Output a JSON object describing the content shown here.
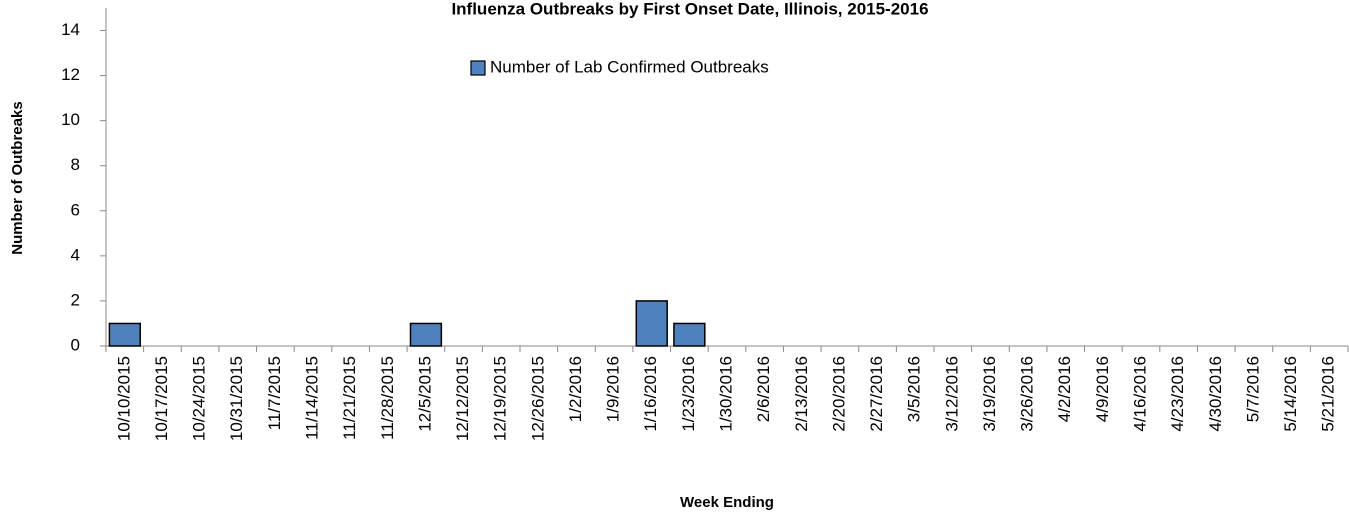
{
  "chart_data": {
    "type": "bar",
    "title": "Influenza Outbreaks by First Onset Date, Illinois, 2015-2016",
    "x_label": "Week Ending",
    "y_label": "Number of Outbreaks",
    "categories": [
      "10/10/2015",
      "10/17/2015",
      "10/24/2015",
      "10/31/2015",
      "11/7/2015",
      "11/14/2015",
      "11/21/2015",
      "11/28/2015",
      "12/5/2015",
      "12/12/2015",
      "12/19/2015",
      "12/26/2015",
      "1/2/2016",
      "1/9/2016",
      "1/16/2016",
      "1/23/2016",
      "1/30/2016",
      "2/6/2016",
      "2/13/2016",
      "2/20/2016",
      "2/27/2016",
      "3/5/2016",
      "3/12/2016",
      "3/19/2016",
      "3/26/2016",
      "4/2/2016",
      "4/9/2016",
      "4/16/2016",
      "4/23/2016",
      "4/30/2016",
      "5/7/2016",
      "5/14/2016",
      "5/21/2016"
    ],
    "series": [
      {
        "name": "Number of Lab Confirmed Outbreaks",
        "color": "#4f81bd",
        "values": [
          1,
          0,
          0,
          0,
          0,
          0,
          0,
          0,
          1,
          0,
          0,
          0,
          0,
          0,
          2,
          1,
          0,
          0,
          0,
          0,
          0,
          0,
          0,
          0,
          0,
          0,
          0,
          0,
          0,
          0,
          0,
          0,
          0
        ]
      }
    ],
    "ylim": [
      0,
      15
    ],
    "yticks": [
      0,
      2,
      4,
      6,
      8,
      10,
      12,
      14
    ],
    "grid": false,
    "legend": "top"
  }
}
